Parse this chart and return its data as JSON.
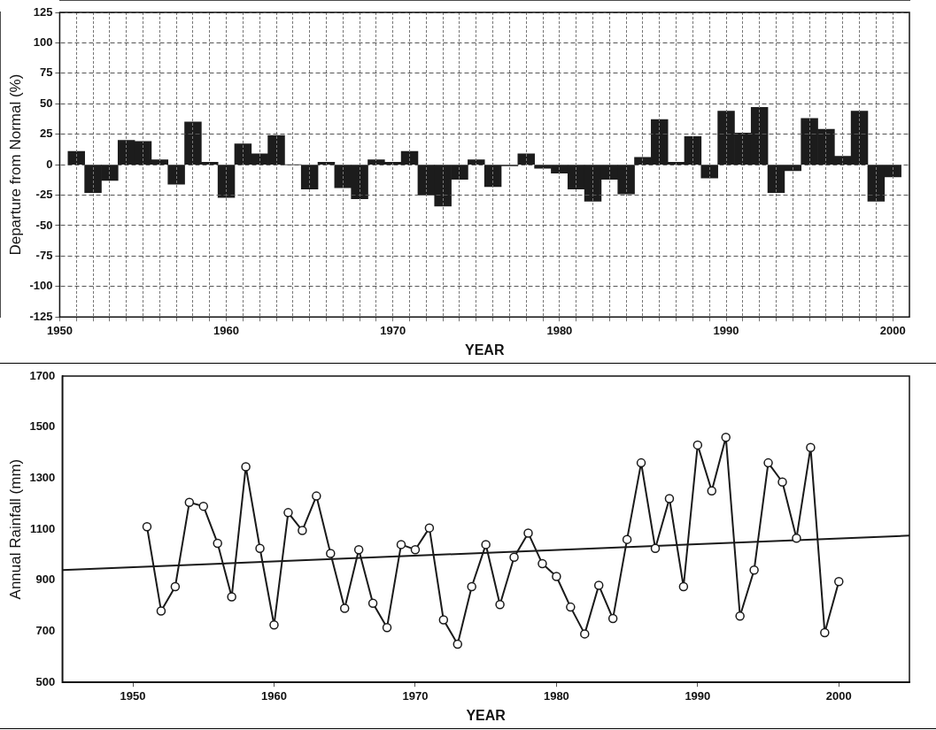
{
  "chart_data": [
    {
      "type": "bar",
      "xlabel": "YEAR",
      "ylabel": "Departure from Normal (%)",
      "grid": true,
      "x": [
        1951,
        1952,
        1953,
        1954,
        1955,
        1956,
        1957,
        1958,
        1959,
        1960,
        1961,
        1962,
        1963,
        1964,
        1965,
        1966,
        1967,
        1968,
        1969,
        1970,
        1971,
        1972,
        1973,
        1974,
        1975,
        1976,
        1977,
        1978,
        1979,
        1980,
        1981,
        1982,
        1983,
        1984,
        1985,
        1986,
        1987,
        1988,
        1989,
        1990,
        1991,
        1992,
        1993,
        1994,
        1995,
        1996,
        1997,
        1998,
        1999,
        2000
      ],
      "series": [
        {
          "color": "#1c1c1c",
          "values": [
            11,
            -23,
            -13,
            20,
            19,
            4,
            -16,
            35,
            2,
            -27,
            17,
            9,
            24,
            0,
            -20,
            2,
            -19,
            -28,
            4,
            2,
            11,
            -25,
            -34,
            -12,
            4,
            -18,
            -1,
            9,
            -3,
            -7,
            -20,
            -30,
            -12,
            -24,
            6,
            37,
            2,
            23,
            -11,
            44,
            26,
            47,
            -23,
            -5,
            38,
            29,
            7,
            44,
            -30,
            -10
          ]
        }
      ],
      "xlim": [
        1950,
        2001
      ],
      "xticks": [
        1950,
        {
          "value": 1951,
          "label": null
        },
        {
          "value": 1952,
          "label": null
        },
        {
          "value": 1953,
          "label": null
        },
        {
          "value": 1954,
          "label": null
        },
        {
          "value": 1955,
          "label": null
        },
        {
          "value": 1956,
          "label": null
        },
        {
          "value": 1957,
          "label": null
        },
        {
          "value": 1958,
          "label": null
        },
        {
          "value": 1959,
          "label": null
        },
        1960,
        {
          "value": 1961,
          "label": null
        },
        {
          "value": 1962,
          "label": null
        },
        {
          "value": 1963,
          "label": null
        },
        {
          "value": 1964,
          "label": null
        },
        {
          "value": 1965,
          "label": null
        },
        {
          "value": 1966,
          "label": null
        },
        {
          "value": 1967,
          "label": null
        },
        {
          "value": 1968,
          "label": null
        },
        {
          "value": 1969,
          "label": null
        },
        1970,
        {
          "value": 1971,
          "label": null
        },
        {
          "value": 1972,
          "label": null
        },
        {
          "value": 1973,
          "label": null
        },
        {
          "value": 1974,
          "label": null
        },
        {
          "value": 1975,
          "label": null
        },
        {
          "value": 1976,
          "label": null
        },
        {
          "value": 1977,
          "label": null
        },
        {
          "value": 1978,
          "label": null
        },
        {
          "value": 1979,
          "label": null
        },
        1980,
        {
          "value": 1981,
          "label": null
        },
        {
          "value": 1982,
          "label": null
        },
        {
          "value": 1983,
          "label": null
        },
        {
          "value": 1984,
          "label": null
        },
        {
          "value": 1985,
          "label": null
        },
        {
          "value": 1986,
          "label": null
        },
        {
          "value": 1987,
          "label": null
        },
        {
          "value": 1988,
          "label": null
        },
        {
          "value": 1989,
          "label": null
        },
        1990,
        {
          "value": 1991,
          "label": null
        },
        {
          "value": 1992,
          "label": null
        },
        {
          "value": 1993,
          "label": null
        },
        {
          "value": 1994,
          "label": null
        },
        {
          "value": 1995,
          "label": null
        },
        {
          "value": 1996,
          "label": null
        },
        {
          "value": 1997,
          "label": null
        },
        {
          "value": 1998,
          "label": null
        },
        {
          "value": 1999,
          "label": null
        },
        2000
      ],
      "ylim": [
        -125,
        125
      ],
      "yticks": [
        -125,
        -100,
        -75,
        -50,
        -25,
        0,
        25,
        50,
        75,
        100,
        125
      ]
    },
    {
      "type": "line",
      "xlabel": "YEAR",
      "ylabel": "Annual Rainfall (mm)",
      "marker": "circle",
      "x": [
        1951,
        1952,
        1953,
        1954,
        1955,
        1956,
        1957,
        1958,
        1959,
        1960,
        1961,
        1962,
        1963,
        1964,
        1965,
        1966,
        1967,
        1968,
        1969,
        1970,
        1971,
        1972,
        1973,
        1974,
        1975,
        1976,
        1977,
        1978,
        1979,
        1980,
        1981,
        1982,
        1983,
        1984,
        1985,
        1986,
        1987,
        1988,
        1989,
        1990,
        1991,
        1992,
        1993,
        1994,
        1995,
        1996,
        1997,
        1998,
        1999,
        2000
      ],
      "series": [
        {
          "color": "#1a1a1a",
          "values": [
            1110,
            780,
            875,
            1205,
            1190,
            1045,
            835,
            1345,
            1025,
            725,
            1165,
            1095,
            1230,
            1005,
            790,
            1020,
            810,
            715,
            1040,
            1020,
            1105,
            745,
            650,
            875,
            1040,
            805,
            990,
            1085,
            965,
            915,
            795,
            690,
            880,
            750,
            1060,
            1360,
            1025,
            1220,
            875,
            1430,
            1250,
            1460,
            760,
            940,
            1360,
            1285,
            1065,
            1420,
            695,
            895
          ]
        },
        {
          "color": "#1a1a1a",
          "marker": "none",
          "x": [
            1945,
            2005
          ],
          "values": [
            940,
            1075
          ]
        }
      ],
      "xlim": [
        1945,
        2005
      ],
      "xticks": [
        1950,
        1960,
        1970,
        1980,
        1990,
        2000
      ],
      "ylim": [
        500,
        1700
      ],
      "yticks": [
        500,
        700,
        900,
        1100,
        1300,
        1500,
        1700
      ]
    }
  ]
}
